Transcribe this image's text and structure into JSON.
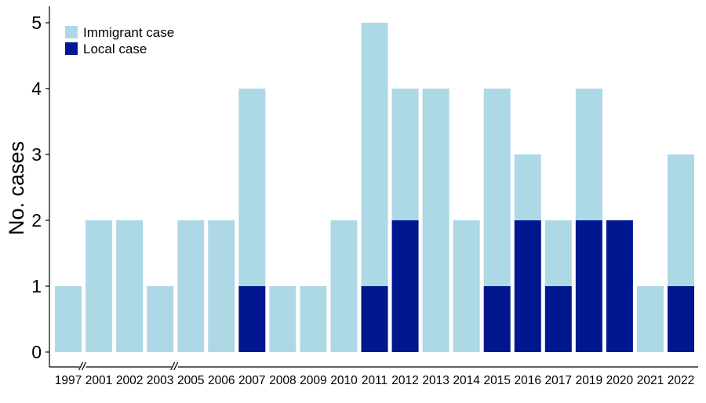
{
  "chart_data": {
    "type": "bar",
    "stacked": true,
    "categories": [
      "1997",
      "2001",
      "2002",
      "2003",
      "2005",
      "2006",
      "2007",
      "2008",
      "2009",
      "2010",
      "2011",
      "2012",
      "2013",
      "2014",
      "2015",
      "2016",
      "2017",
      "2019",
      "2020",
      "2021",
      "2022"
    ],
    "series": [
      {
        "name": "Local case",
        "values": [
          0,
          0,
          0,
          0,
          0,
          0,
          1,
          0,
          0,
          0,
          1,
          2,
          0,
          0,
          1,
          2,
          1,
          2,
          2,
          0,
          1
        ]
      },
      {
        "name": "Immigrant case",
        "values": [
          1,
          2,
          2,
          1,
          2,
          2,
          3,
          1,
          1,
          2,
          4,
          2,
          4,
          2,
          3,
          1,
          1,
          2,
          0,
          1,
          2
        ]
      }
    ],
    "ylabel": "No. cases",
    "ylim": [
      0,
      5
    ],
    "yticks": [
      0,
      1,
      2,
      3,
      4,
      5
    ],
    "axis_breaks_after": [
      "1997",
      "2003"
    ],
    "grid": false,
    "legend": {
      "placement": "top-left",
      "entries": [
        {
          "label": "Immigrant case",
          "color": "#add8e6"
        },
        {
          "label": "Local case",
          "color": "#00178f"
        }
      ]
    },
    "colors": {
      "immigrant": "#add8e6",
      "local": "#00178f"
    }
  }
}
